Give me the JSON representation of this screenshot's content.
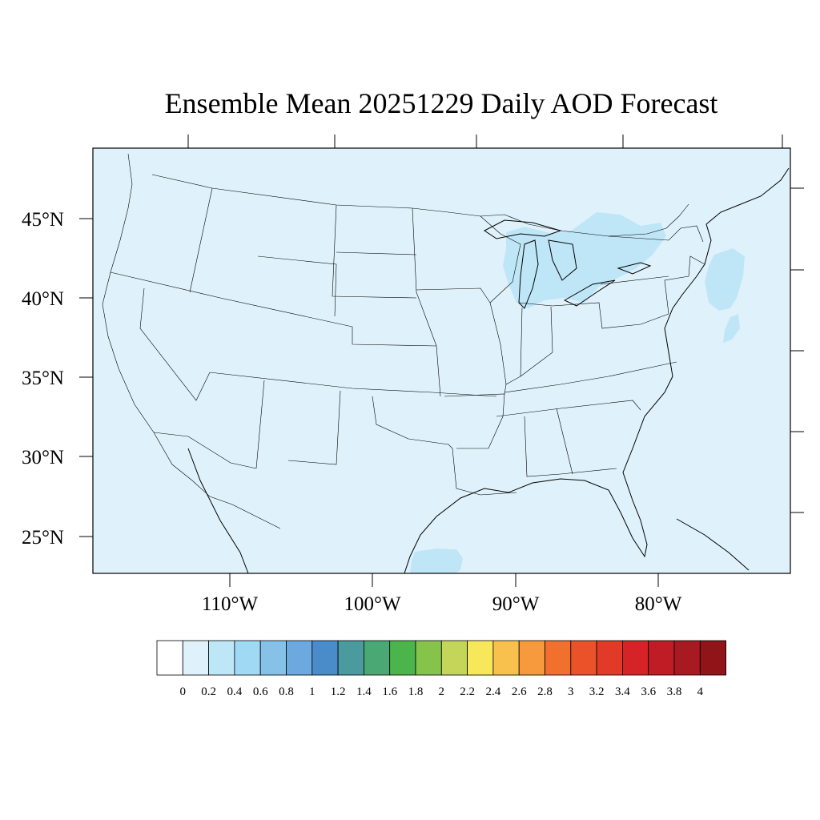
{
  "title": "Ensemble Mean 20251229 Daily AOD Forecast",
  "map": {
    "ocean_fill": "#dff2fb",
    "land_fill": "#dff2fb",
    "border_color": "#000000",
    "lat_labels": [
      "45°N",
      "40°N",
      "35°N",
      "30°N",
      "25°N"
    ],
    "lon_labels": [
      "110°W",
      "100°W",
      "90°W",
      "80°W"
    ]
  },
  "colorbar": {
    "labels": [
      "0",
      "0.2",
      "0.4",
      "0.6",
      "0.8",
      "1",
      "1.2",
      "1.4",
      "1.6",
      "1.8",
      "2",
      "2.2",
      "2.4",
      "2.6",
      "2.8",
      "3",
      "3.2",
      "3.4",
      "3.6",
      "3.8",
      "4"
    ],
    "colors": [
      "#ffffff",
      "#dff2fb",
      "#bde6f7",
      "#a0d9f4",
      "#86c2e8",
      "#6ba9de",
      "#4a8cca",
      "#4a9a9e",
      "#49a874",
      "#4bb54b",
      "#86c34b",
      "#c3d65a",
      "#f6e85a",
      "#f8c04d",
      "#f69a3d",
      "#f2702e",
      "#ea5229",
      "#e13b27",
      "#d52328",
      "#bf1c25",
      "#a81a21",
      "#8f1519"
    ]
  },
  "chart_data": {
    "type": "heatmap",
    "title": "Ensemble Mean 20251229 Daily AOD Forecast",
    "variable": "AOD",
    "date": "20251229",
    "xlabel": "",
    "ylabel": "",
    "x_ticks": [
      "110°W",
      "100°W",
      "90°W",
      "80°W"
    ],
    "y_ticks": [
      "45°N",
      "40°N",
      "35°N",
      "30°N",
      "25°N"
    ],
    "color_levels": [
      0,
      0.2,
      0.4,
      0.6,
      0.8,
      1,
      1.2,
      1.4,
      1.6,
      1.8,
      2,
      2.2,
      2.4,
      2.6,
      2.8,
      3,
      3.2,
      3.4,
      3.6,
      3.8,
      4
    ],
    "dominant_range": [
      0,
      0.2
    ],
    "elevated_regions_range": [
      0.2,
      0.4
    ],
    "elevated_regions": [
      "Great Lakes / southern Ontario",
      "Atlantic east of New England",
      "Gulf of Mexico off south Texas"
    ]
  }
}
